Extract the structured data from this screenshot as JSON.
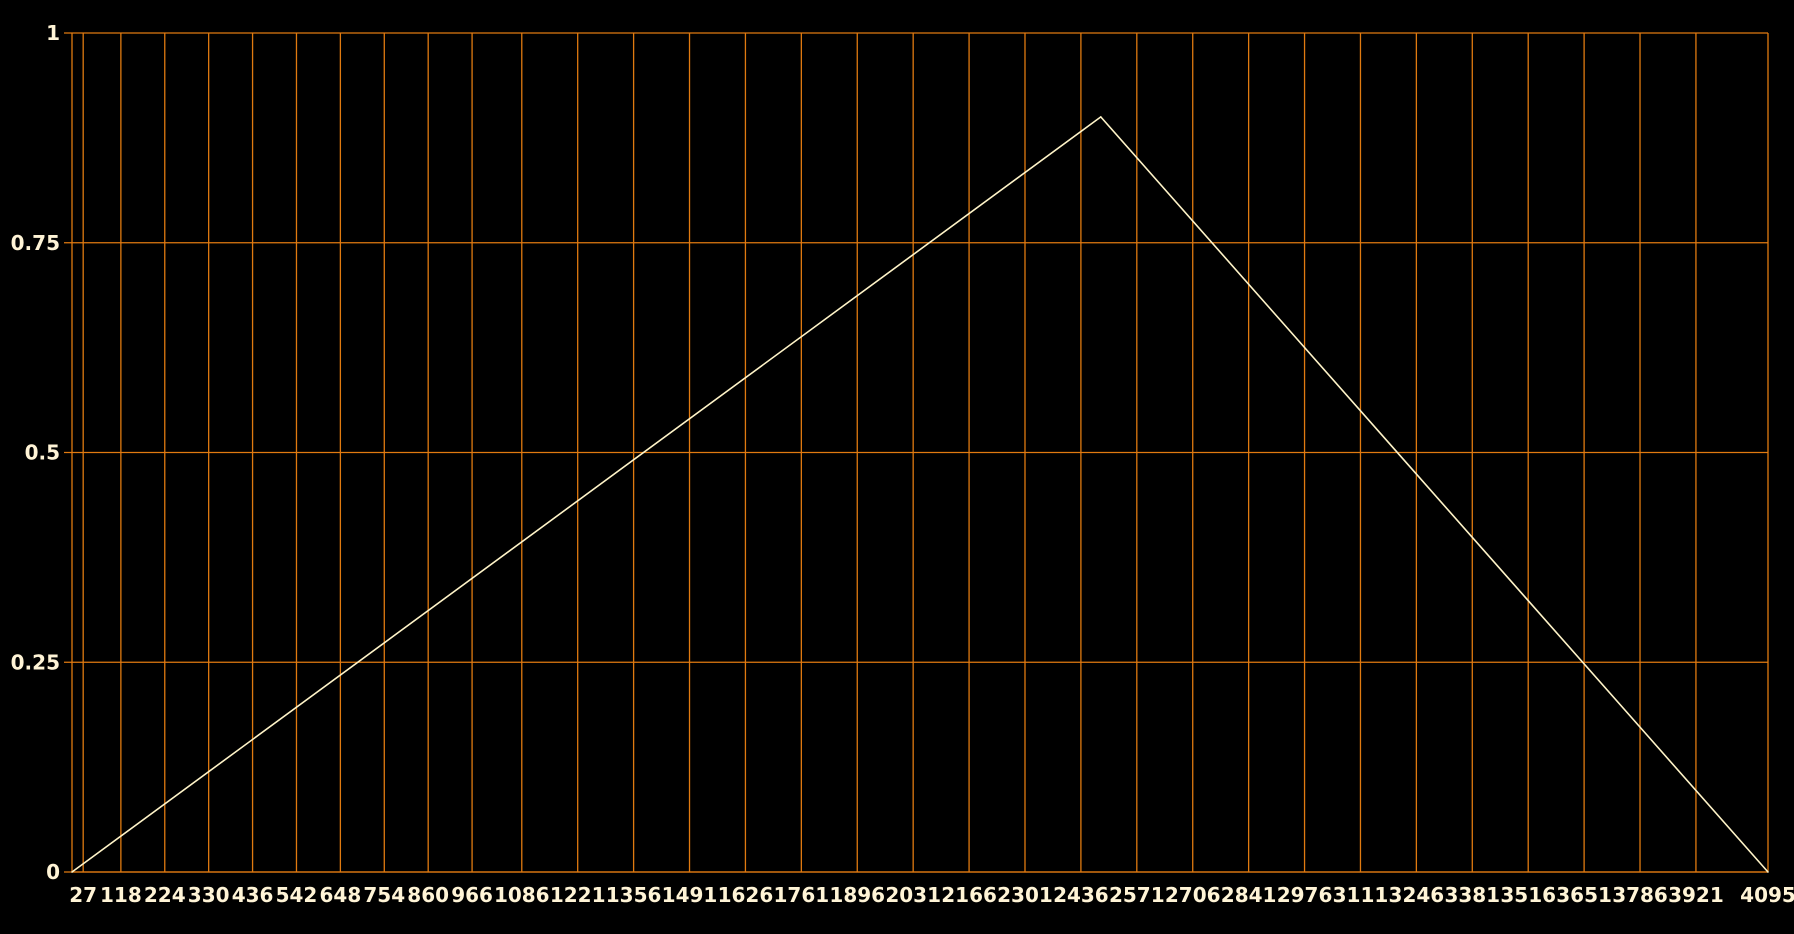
{
  "chart_data": {
    "type": "line",
    "title": "",
    "xlabel": "",
    "ylabel": "",
    "grid": true,
    "legend": "none",
    "colors": {
      "background": "#000000",
      "grid": "#e07a10",
      "line": "#fff4c8",
      "text": "#fff4d6"
    },
    "xlim": [
      0,
      4095
    ],
    "ylim": [
      0,
      1
    ],
    "x_ticks": [
      "27",
      "118",
      "224",
      "330",
      "436",
      "542",
      "648",
      "754",
      "860",
      "966",
      "1086",
      "1221",
      "1356",
      "1491",
      "1626",
      "1761",
      "1896",
      "2031",
      "2166",
      "2301",
      "2436",
      "2571",
      "2706",
      "2841",
      "2976",
      "3111",
      "3246",
      "3381",
      "3516",
      "3651",
      "3786",
      "3921",
      "4095"
    ],
    "y_ticks": [
      "0",
      "0.25",
      "0.5",
      "0.75",
      "1"
    ],
    "series": [
      {
        "x": [
          0,
          2484,
          4095
        ],
        "y": [
          0,
          0.9,
          0
        ]
      }
    ]
  }
}
